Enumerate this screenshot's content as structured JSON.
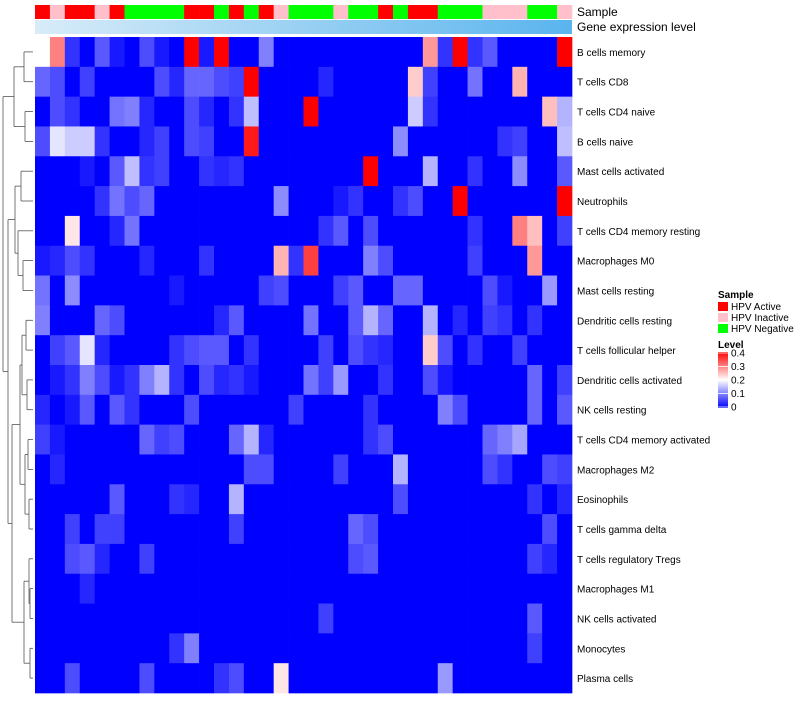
{
  "chart_data": {
    "type": "heatmap",
    "title": "",
    "annotation_tracks": [
      {
        "name": "Sample",
        "label": "Sample"
      },
      {
        "name": "Gene expression level",
        "label": "Gene expression level"
      }
    ],
    "sample_annotation": [
      "HPV Active",
      "HPV Inactive",
      "HPV Active",
      "HPV Active",
      "HPV Inactive",
      "HPV Active",
      "HPV Negative",
      "HPV Negative",
      "HPV Negative",
      "HPV Negative",
      "HPV Active",
      "HPV Active",
      "HPV Negative",
      "HPV Active",
      "HPV Negative",
      "HPV Active",
      "HPV Inactive",
      "HPV Negative",
      "HPV Negative",
      "HPV Negative",
      "HPV Inactive",
      "HPV Negative",
      "HPV Negative",
      "HPV Active",
      "HPV Negative",
      "HPV Active",
      "HPV Active",
      "HPV Negative",
      "HPV Negative",
      "HPV Negative",
      "HPV Inactive",
      "HPV Inactive",
      "HPV Inactive",
      "HPV Negative",
      "HPV Negative",
      "HPV Inactive"
    ],
    "expression_gradient": [
      "#d8ecf8",
      "#5ab4ee"
    ],
    "rows": [
      "B cells memory",
      "T cells CD8",
      "T cells CD4 naive",
      "B cells naive",
      "Mast cells activated",
      "Neutrophils",
      "T cells CD4 memory resting",
      "Macrophages M0",
      "Mast cells resting",
      "Dendritic cells resting",
      "T cells follicular helper",
      "Dendritic cells activated",
      "NK cells resting",
      "T cells CD4 memory activated",
      "Macrophages M2",
      "Eosinophils",
      "T cells gamma delta",
      "T cells regulatory  Tregs",
      "Macrophages M1",
      "NK cells activated",
      "Monocytes",
      "Plasma cells"
    ],
    "values": [
      [
        0.2,
        0.3,
        0.04,
        0.0,
        0.07,
        0.02,
        0.0,
        0.06,
        0.02,
        0.0,
        0.4,
        0.02,
        0.4,
        0.0,
        0.0,
        0.1,
        0.0,
        0.0,
        0.0,
        0.0,
        0.0,
        0.0,
        0.0,
        0.0,
        0.0,
        0.0,
        0.28,
        0.04,
        0.4,
        0.04,
        0.07,
        0.0,
        0.0,
        0.0,
        0.0,
        0.4
      ],
      [
        0.08,
        0.06,
        0.0,
        0.05,
        0.0,
        0.0,
        0.0,
        0.0,
        0.06,
        0.03,
        0.08,
        0.08,
        0.06,
        0.05,
        0.4,
        0.0,
        0.0,
        0.0,
        0.0,
        0.03,
        0.0,
        0.0,
        0.0,
        0.0,
        0.0,
        0.24,
        0.05,
        0.0,
        0.0,
        0.09,
        0.0,
        0.0,
        0.26,
        0.0,
        0.0,
        0.0
      ],
      [
        0.0,
        0.06,
        0.04,
        0.0,
        0.0,
        0.09,
        0.1,
        0.03,
        0.0,
        0.0,
        0.06,
        0.03,
        0.0,
        0.04,
        0.15,
        0.0,
        0.0,
        0.0,
        0.4,
        0.0,
        0.0,
        0.0,
        0.0,
        0.0,
        0.0,
        0.16,
        0.04,
        0.0,
        0.0,
        0.0,
        0.0,
        0.0,
        0.0,
        0.0,
        0.25,
        0.14
      ],
      [
        0.06,
        0.18,
        0.16,
        0.16,
        0.04,
        0.0,
        0.0,
        0.03,
        0.05,
        0.0,
        0.06,
        0.05,
        0.0,
        0.0,
        0.38,
        0.0,
        0.0,
        0.0,
        0.0,
        0.0,
        0.0,
        0.0,
        0.0,
        0.0,
        0.11,
        0.0,
        0.0,
        0.0,
        0.0,
        0.0,
        0.0,
        0.04,
        0.05,
        0.0,
        0.0,
        0.15
      ],
      [
        0.0,
        0.0,
        0.0,
        0.02,
        0.0,
        0.07,
        0.15,
        0.04,
        0.05,
        0.0,
        0.0,
        0.04,
        0.03,
        0.04,
        0.0,
        0.0,
        0.0,
        0.0,
        0.0,
        0.0,
        0.0,
        0.0,
        0.4,
        0.0,
        0.0,
        0.0,
        0.14,
        0.0,
        0.0,
        0.04,
        0.0,
        0.0,
        0.11,
        0.0,
        0.0,
        0.07
      ],
      [
        0.0,
        0.0,
        0.0,
        0.0,
        0.04,
        0.09,
        0.06,
        0.08,
        0.0,
        0.0,
        0.0,
        0.0,
        0.0,
        0.0,
        0.0,
        0.0,
        0.11,
        0.0,
        0.0,
        0.0,
        0.02,
        0.04,
        0.0,
        0.0,
        0.04,
        0.06,
        0.0,
        0.0,
        0.4,
        0.0,
        0.0,
        0.0,
        0.0,
        0.0,
        0.0,
        0.4
      ],
      [
        0.0,
        0.0,
        0.22,
        0.0,
        0.0,
        0.03,
        0.09,
        0.0,
        0.0,
        0.0,
        0.0,
        0.0,
        0.0,
        0.0,
        0.0,
        0.0,
        0.0,
        0.0,
        0.0,
        0.04,
        0.07,
        0.0,
        0.06,
        0.0,
        0.0,
        0.0,
        0.0,
        0.0,
        0.0,
        0.04,
        0.0,
        0.0,
        0.3,
        0.25,
        0.0,
        0.05
      ],
      [
        0.02,
        0.03,
        0.06,
        0.04,
        0.0,
        0.0,
        0.0,
        0.03,
        0.0,
        0.0,
        0.0,
        0.04,
        0.0,
        0.0,
        0.0,
        0.0,
        0.26,
        0.04,
        0.35,
        0.0,
        0.0,
        0.0,
        0.1,
        0.06,
        0.0,
        0.0,
        0.0,
        0.0,
        0.0,
        0.05,
        0.0,
        0.0,
        0.0,
        0.28,
        0.0,
        0.0
      ],
      [
        0.09,
        0.0,
        0.11,
        0.0,
        0.0,
        0.0,
        0.0,
        0.0,
        0.0,
        0.02,
        0.0,
        0.0,
        0.0,
        0.0,
        0.0,
        0.05,
        0.06,
        0.0,
        0.0,
        0.0,
        0.05,
        0.07,
        0.0,
        0.0,
        0.08,
        0.08,
        0.0,
        0.0,
        0.0,
        0.0,
        0.06,
        0.02,
        0.0,
        0.0,
        0.12,
        0.0
      ],
      [
        0.1,
        0.0,
        0.0,
        0.0,
        0.08,
        0.06,
        0.0,
        0.0,
        0.0,
        0.0,
        0.0,
        0.0,
        0.03,
        0.07,
        0.0,
        0.0,
        0.0,
        0.0,
        0.09,
        0.0,
        0.0,
        0.07,
        0.14,
        0.08,
        0.0,
        0.0,
        0.14,
        0.0,
        0.03,
        0.0,
        0.05,
        0.04,
        0.0,
        0.04,
        0.0,
        0.0
      ],
      [
        0.0,
        0.05,
        0.07,
        0.18,
        0.03,
        0.0,
        0.0,
        0.0,
        0.0,
        0.04,
        0.06,
        0.07,
        0.07,
        0.0,
        0.04,
        0.0,
        0.0,
        0.0,
        0.0,
        0.05,
        0.0,
        0.06,
        0.04,
        0.03,
        0.0,
        0.0,
        0.24,
        0.06,
        0.0,
        0.04,
        0.0,
        0.0,
        0.05,
        0.0,
        0.0,
        0.0
      ],
      [
        0.0,
        0.02,
        0.04,
        0.1,
        0.06,
        0.02,
        0.04,
        0.1,
        0.14,
        0.04,
        0.0,
        0.06,
        0.03,
        0.04,
        0.02,
        0.0,
        0.0,
        0.0,
        0.09,
        0.05,
        0.12,
        0.0,
        0.0,
        0.04,
        0.0,
        0.0,
        0.06,
        0.02,
        0.0,
        0.0,
        0.0,
        0.0,
        0.0,
        0.08,
        0.0,
        0.05
      ],
      [
        0.03,
        0.0,
        0.02,
        0.07,
        0.0,
        0.07,
        0.04,
        0.0,
        0.0,
        0.0,
        0.06,
        0.0,
        0.0,
        0.0,
        0.0,
        0.0,
        0.0,
        0.05,
        0.0,
        0.0,
        0.0,
        0.0,
        0.04,
        0.0,
        0.0,
        0.0,
        0.0,
        0.1,
        0.06,
        0.0,
        0.0,
        0.0,
        0.0,
        0.08,
        0.0,
        0.07
      ],
      [
        0.05,
        0.02,
        0.0,
        0.0,
        0.0,
        0.0,
        0.0,
        0.08,
        0.05,
        0.06,
        0.0,
        0.0,
        0.0,
        0.08,
        0.14,
        0.03,
        0.0,
        0.0,
        0.0,
        0.0,
        0.0,
        0.0,
        0.04,
        0.06,
        0.0,
        0.0,
        0.0,
        0.0,
        0.0,
        0.0,
        0.08,
        0.1,
        0.13,
        0.0,
        0.0,
        0.0
      ],
      [
        0.0,
        0.03,
        0.0,
        0.0,
        0.0,
        0.0,
        0.0,
        0.0,
        0.0,
        0.0,
        0.0,
        0.0,
        0.0,
        0.0,
        0.06,
        0.06,
        0.0,
        0.0,
        0.0,
        0.0,
        0.05,
        0.0,
        0.0,
        0.0,
        0.14,
        0.0,
        0.0,
        0.0,
        0.0,
        0.0,
        0.06,
        0.04,
        0.0,
        0.0,
        0.06,
        0.05
      ],
      [
        0.0,
        0.0,
        0.0,
        0.0,
        0.0,
        0.07,
        0.0,
        0.0,
        0.0,
        0.04,
        0.03,
        0.0,
        0.0,
        0.14,
        0.0,
        0.0,
        0.0,
        0.0,
        0.0,
        0.0,
        0.0,
        0.0,
        0.0,
        0.0,
        0.06,
        0.0,
        0.0,
        0.0,
        0.0,
        0.0,
        0.0,
        0.0,
        0.0,
        0.04,
        0.0,
        0.03
      ],
      [
        0.0,
        0.0,
        0.05,
        0.0,
        0.05,
        0.05,
        0.0,
        0.0,
        0.0,
        0.0,
        0.0,
        0.0,
        0.0,
        0.05,
        0.0,
        0.0,
        0.0,
        0.0,
        0.0,
        0.0,
        0.0,
        0.08,
        0.06,
        0.0,
        0.0,
        0.0,
        0.0,
        0.0,
        0.0,
        0.0,
        0.0,
        0.0,
        0.0,
        0.0,
        0.06,
        0.0
      ],
      [
        0.0,
        0.0,
        0.06,
        0.07,
        0.03,
        0.0,
        0.0,
        0.05,
        0.0,
        0.0,
        0.0,
        0.0,
        0.0,
        0.0,
        0.0,
        0.0,
        0.0,
        0.0,
        0.0,
        0.0,
        0.0,
        0.06,
        0.07,
        0.0,
        0.0,
        0.0,
        0.0,
        0.0,
        0.0,
        0.0,
        0.0,
        0.0,
        0.0,
        0.05,
        0.03,
        0.0
      ],
      [
        0.0,
        0.0,
        0.0,
        0.03,
        0.0,
        0.0,
        0.0,
        0.0,
        0.0,
        0.0,
        0.0,
        0.0,
        0.0,
        0.0,
        0.0,
        0.0,
        0.0,
        0.0,
        0.0,
        0.0,
        0.0,
        0.0,
        0.0,
        0.0,
        0.0,
        0.0,
        0.0,
        0.0,
        0.0,
        0.0,
        0.0,
        0.0,
        0.0,
        0.0,
        0.0,
        0.0
      ],
      [
        0.0,
        0.0,
        0.0,
        0.0,
        0.0,
        0.0,
        0.0,
        0.0,
        0.0,
        0.0,
        0.0,
        0.0,
        0.0,
        0.0,
        0.0,
        0.0,
        0.0,
        0.0,
        0.0,
        0.05,
        0.0,
        0.0,
        0.0,
        0.0,
        0.0,
        0.0,
        0.0,
        0.0,
        0.0,
        0.0,
        0.0,
        0.0,
        0.0,
        0.07,
        0.0,
        0.0
      ],
      [
        0.0,
        0.0,
        0.0,
        0.0,
        0.0,
        0.0,
        0.0,
        0.0,
        0.0,
        0.04,
        0.1,
        0.0,
        0.0,
        0.0,
        0.0,
        0.0,
        0.0,
        0.0,
        0.0,
        0.0,
        0.0,
        0.0,
        0.0,
        0.0,
        0.0,
        0.0,
        0.0,
        0.0,
        0.0,
        0.0,
        0.0,
        0.0,
        0.0,
        0.05,
        0.0,
        0.0
      ],
      [
        0.0,
        0.0,
        0.06,
        0.0,
        0.0,
        0.0,
        0.0,
        0.06,
        0.0,
        0.0,
        0.0,
        0.0,
        0.04,
        0.06,
        0.0,
        0.0,
        0.22,
        0.0,
        0.0,
        0.0,
        0.0,
        0.0,
        0.0,
        0.0,
        0.0,
        0.0,
        0.0,
        0.12,
        0.0,
        0.0,
        0.0,
        0.0,
        0.0,
        0.0,
        0.0,
        0.0
      ]
    ],
    "legend_sample": {
      "title": "Sample",
      "items": [
        {
          "label": "HPV Active",
          "color": "#ff0000"
        },
        {
          "label": "HPV Inactive",
          "color": "#ffc0cb"
        },
        {
          "label": "HPV Negative",
          "color": "#00ff00"
        }
      ]
    },
    "legend_level": {
      "title": "Level",
      "ticks": [
        "0.4",
        "0.3",
        "0.2",
        "0.1",
        "0"
      ],
      "min": 0,
      "max": 0.4
    },
    "color_scale": {
      "low": "#0000ff",
      "mid": "#ffffff",
      "high": "#ff0000",
      "mid_value": 0.2
    }
  }
}
